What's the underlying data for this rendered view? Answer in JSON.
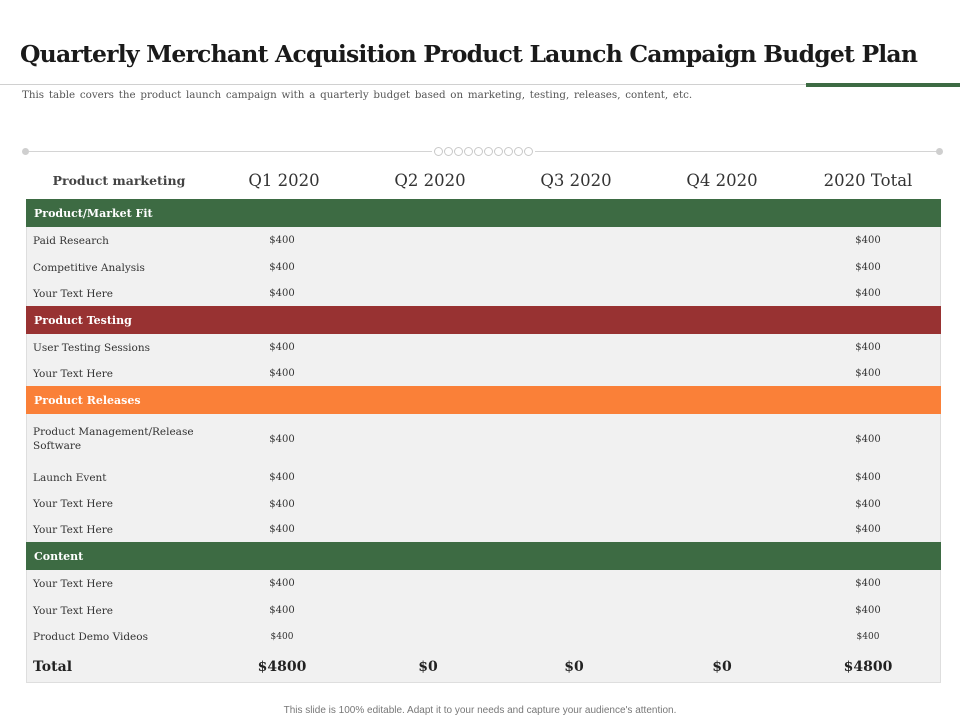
{
  "title": "Quarterly Merchant Acquisition Product Launch Campaign Budget Plan",
  "subtitle": "This table covers the product launch campaign  with a quarterly  budget  based on marketing,  testing, releases, content,  etc.",
  "colors": {
    "accent_green": "#3d6b43",
    "section_red": "#983232",
    "section_orange": "#fa8038",
    "table_bg": "#f1f1f1"
  },
  "table": {
    "headers": [
      "Product marketing",
      "Q1 2020",
      "Q2 2020",
      "Q3 2020",
      "Q4 2020",
      "2020 Total"
    ],
    "sections": [
      {
        "name": "Product/Market Fit",
        "color": "#3d6b43",
        "rows": [
          {
            "label": "Paid Research",
            "q1": "$400",
            "total": "$400"
          },
          {
            "label": "Competitive Analysis",
            "q1": "$400",
            "total": "$400"
          },
          {
            "label": "Your Text Here",
            "q1": "$400",
            "total": "$400"
          }
        ]
      },
      {
        "name": "Product Testing",
        "color": "#983232",
        "rows": [
          {
            "label": "User Testing Sessions",
            "q1": "$400",
            "total": "$400"
          },
          {
            "label": "Your Text Here",
            "q1": "$400",
            "total": "$400"
          }
        ]
      },
      {
        "name": "Product Releases",
        "color": "#fa8038",
        "rows": [
          {
            "label_line1": "Product Management/Release",
            "label_line2": "Software",
            "q1": "$400",
            "total": "$400"
          },
          {
            "label": "Launch Event",
            "q1": "$400",
            "total": "$400"
          },
          {
            "label": "Your Text Here",
            "q1": "$400",
            "total": "$400"
          },
          {
            "label": "Your Text Here",
            "q1": "$400",
            "total": "$400"
          }
        ]
      },
      {
        "name": "Content",
        "color": "#3d6b43",
        "rows": [
          {
            "label": "Your Text Here",
            "q1": "$400",
            "total": "$400"
          },
          {
            "label": "Your Text Here",
            "q1": "$400",
            "total": "$400"
          },
          {
            "label": "Product Demo Videos",
            "q1": "$400",
            "total": "$400"
          }
        ]
      }
    ],
    "total": {
      "label": "Total",
      "q1": "$4800",
      "q2": "$0",
      "q3": "$0",
      "q4": "$0",
      "total": "$4800"
    }
  },
  "footer": "This slide is 100% editable.  Adapt it to your needs and capture your audience's attention."
}
